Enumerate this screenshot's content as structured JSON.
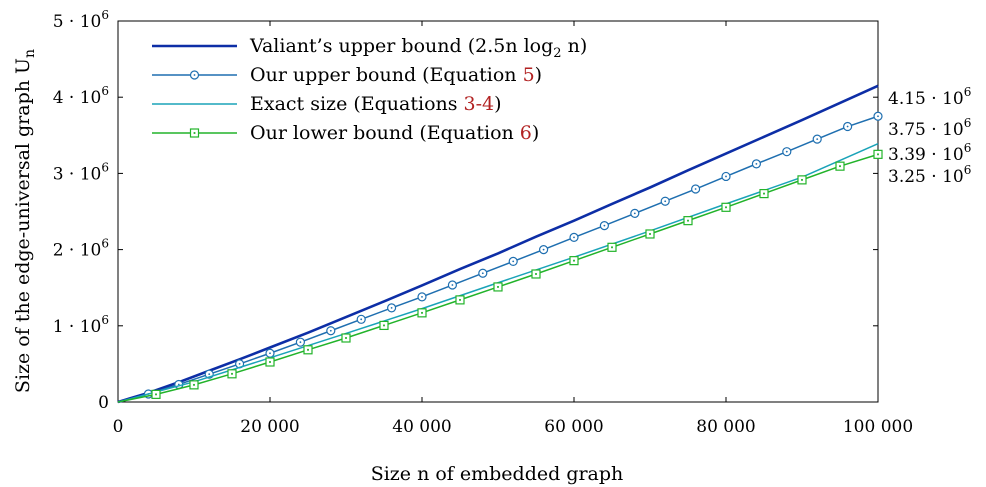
{
  "chart_data": {
    "type": "line",
    "xlabel": "Size n of embedded graph",
    "ylabel": "Size of the edge-universal graph U",
    "ylabel_subscript": "n",
    "xlim": [
      0,
      100000
    ],
    "ylim": [
      0,
      5000000
    ],
    "x_ticks": [
      {
        "value": 0,
        "label": "0"
      },
      {
        "value": 20000,
        "label": "20 000"
      },
      {
        "value": 40000,
        "label": "40 000"
      },
      {
        "value": 60000,
        "label": "60 000"
      },
      {
        "value": 80000,
        "label": "80 000"
      },
      {
        "value": 100000,
        "label": "100 000"
      }
    ],
    "y_ticks": [
      {
        "value": 0,
        "label": "0",
        "exp": ""
      },
      {
        "value": 1000000,
        "label": "1 · 10",
        "exp": "6"
      },
      {
        "value": 2000000,
        "label": "2 · 10",
        "exp": "6"
      },
      {
        "value": 3000000,
        "label": "3 · 10",
        "exp": "6"
      },
      {
        "value": 4000000,
        "label": "4 · 10",
        "exp": "6"
      },
      {
        "value": 5000000,
        "label": "5 · 10",
        "exp": "6"
      }
    ],
    "legend_position": "top-left",
    "series": [
      {
        "name": "Valiant's upper bound (2.5n log₂ n)",
        "legend_main": "Valiant’s upper bound (2.5n log",
        "legend_sub": "2",
        "legend_tail": " n)",
        "color": "#0d2ea6",
        "stroke_width": 2.6,
        "marker": "none",
        "x": [
          0,
          4000,
          8000,
          12000,
          16000,
          20000,
          25000,
          30000,
          35000,
          40000,
          45000,
          50000,
          55000,
          60000,
          65000,
          70000,
          75000,
          80000,
          85000,
          90000,
          95000,
          100000
        ],
        "values": [
          0,
          120000,
          260000,
          410000,
          560000,
          715000,
          910000,
          1115000,
          1320000,
          1530000,
          1745000,
          1950000,
          2170000,
          2380000,
          2600000,
          2815000,
          3040000,
          3260000,
          3480000,
          3700000,
          3925000,
          4150000
        ],
        "end_label": "4.15 · 10",
        "end_exp": "6"
      },
      {
        "name": "Our upper bound (Equation 5)",
        "legend_main": "Our upper bound (Equation ",
        "legend_ref": "5",
        "legend_tail": ")",
        "color": "#1f6fb0",
        "stroke_width": 1.5,
        "marker": "circle",
        "x": [
          0,
          4000,
          8000,
          12000,
          16000,
          20000,
          24000,
          28000,
          32000,
          36000,
          40000,
          44000,
          48000,
          52000,
          56000,
          60000,
          64000,
          68000,
          72000,
          76000,
          80000,
          84000,
          88000,
          92000,
          96000,
          100000
        ],
        "values": [
          0,
          105000,
          230000,
          365000,
          500000,
          640000,
          785000,
          935000,
          1085000,
          1235000,
          1380000,
          1535000,
          1690000,
          1845000,
          2000000,
          2160000,
          2315000,
          2475000,
          2635000,
          2795000,
          2960000,
          3125000,
          3285000,
          3450000,
          3615000,
          3750000
        ],
        "end_label": "3.75 · 10",
        "end_exp": "6"
      },
      {
        "name": "Exact size (Equations 3-4)",
        "legend_main": "Exact size (Equations ",
        "legend_ref": "3-4",
        "legend_tail": ")",
        "color": "#1aa3b8",
        "stroke_width": 1.5,
        "marker": "none",
        "x": [
          0,
          10000,
          20000,
          30000,
          40000,
          50000,
          60000,
          70000,
          80000,
          90000,
          100000
        ],
        "values": [
          0,
          265000,
          580000,
          900000,
          1225000,
          1565000,
          1900000,
          2245000,
          2600000,
          2950000,
          3390000
        ],
        "end_label": "3.39 · 10",
        "end_exp": "6"
      },
      {
        "name": "Our lower bound (Equation 6)",
        "legend_main": "Our lower bound (Equation ",
        "legend_ref": "6",
        "legend_tail": ")",
        "color": "#22b32a",
        "stroke_width": 1.5,
        "marker": "square",
        "x": [
          0,
          5000,
          10000,
          15000,
          20000,
          25000,
          30000,
          35000,
          40000,
          45000,
          50000,
          55000,
          60000,
          65000,
          70000,
          75000,
          80000,
          85000,
          90000,
          95000,
          100000
        ],
        "values": [
          0,
          100000,
          225000,
          370000,
          525000,
          685000,
          840000,
          1005000,
          1170000,
          1340000,
          1510000,
          1680000,
          1855000,
          2030000,
          2205000,
          2380000,
          2555000,
          2735000,
          2915000,
          3095000,
          3250000
        ],
        "end_label": "3.25 · 10",
        "end_exp": "6"
      }
    ]
  }
}
